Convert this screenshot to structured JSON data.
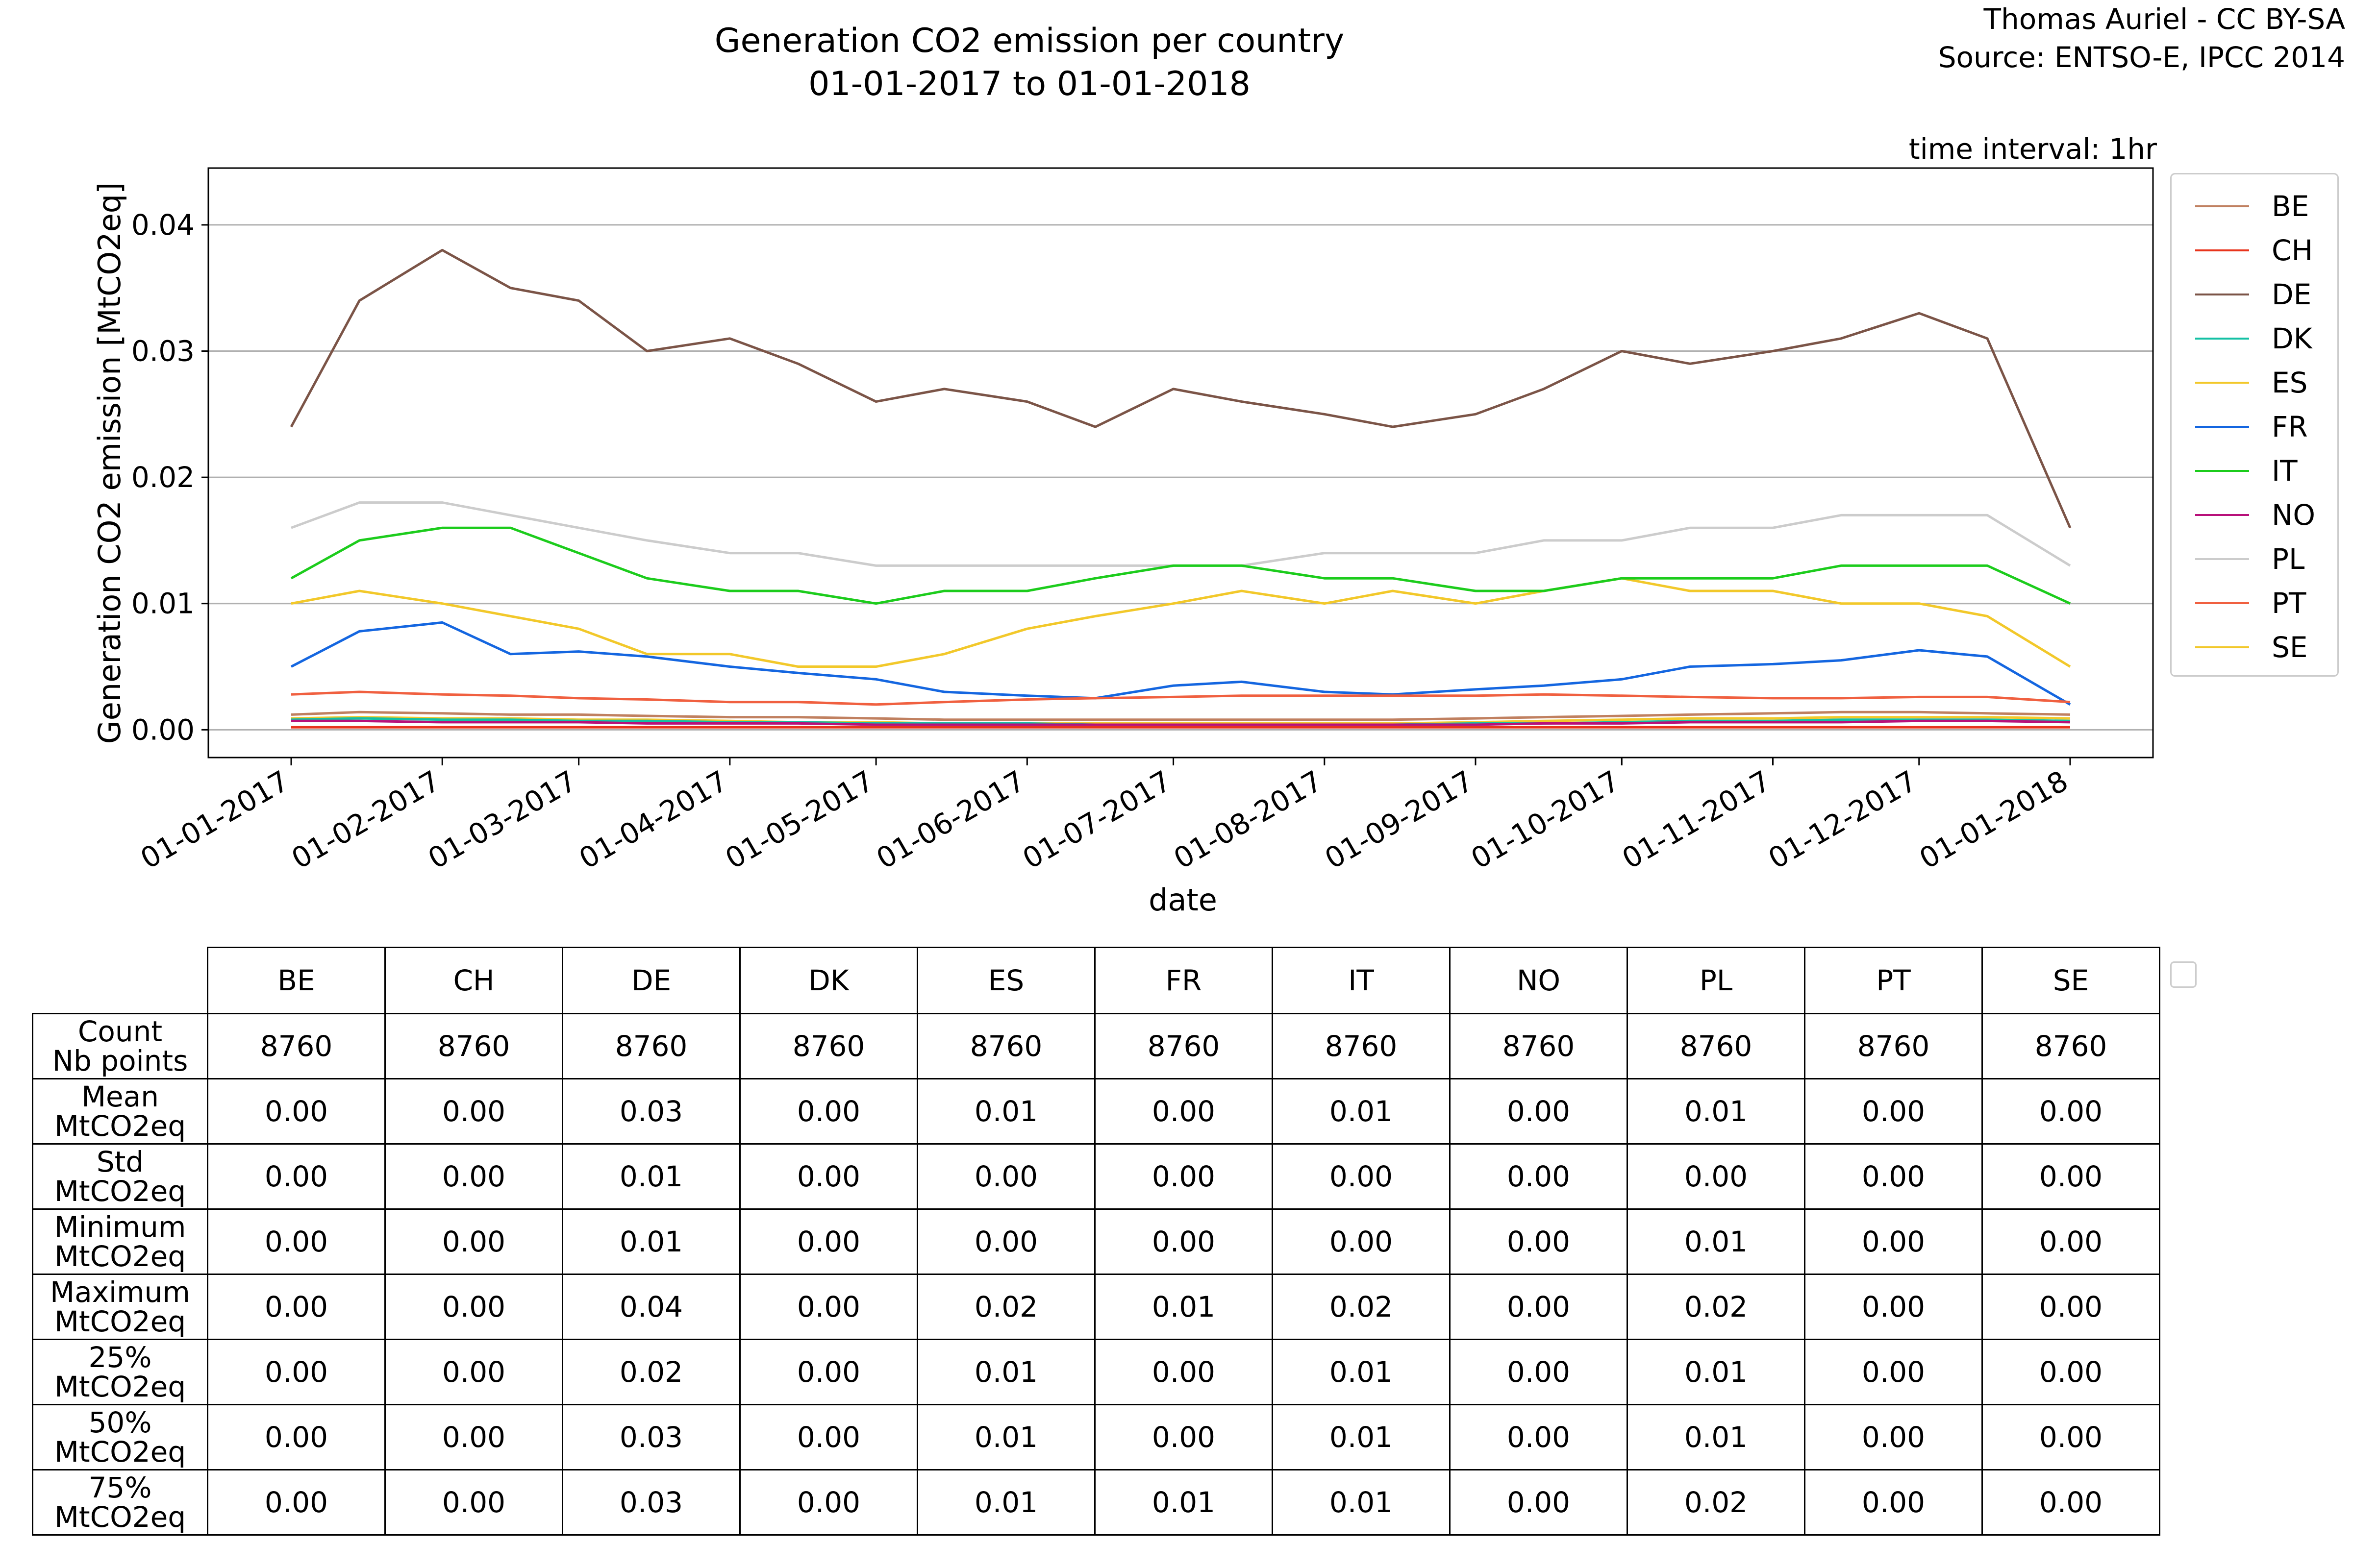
{
  "header": {
    "title_line1": "Generation CO2 emission per country",
    "title_line2": "01-01-2017 to 01-01-2018",
    "credit_line1": "Thomas Auriel - CC BY-SA",
    "credit_line2": "Source: ENTSO-E, IPCC 2014",
    "interval": "time interval: 1hr"
  },
  "chart_data": {
    "type": "line",
    "title": "Generation CO2 emission per country",
    "subtitle": "01-01-2017 to 01-01-2018",
    "xlabel": "date",
    "ylabel": "Generation CO2 emission [MtCO2eq]",
    "xlim": [
      "2016-12-15",
      "2018-01-18"
    ],
    "ylim": [
      -0.0022,
      0.0445
    ],
    "x_ticks": [
      "01-01-2017",
      "01-02-2017",
      "01-03-2017",
      "01-04-2017",
      "01-05-2017",
      "01-06-2017",
      "01-07-2017",
      "01-08-2017",
      "01-09-2017",
      "01-10-2017",
      "01-11-2017",
      "01-12-2017",
      "01-01-2018"
    ],
    "y_ticks": [
      "0.00",
      "0.01",
      "0.02",
      "0.03",
      "0.04"
    ],
    "y_tick_values": [
      0.0,
      0.01,
      0.02,
      0.03,
      0.04
    ],
    "grid": "horizontal",
    "legend_position": "right",
    "x": [
      "2017-01-01",
      "2017-01-15",
      "2017-02-01",
      "2017-02-15",
      "2017-03-01",
      "2017-03-15",
      "2017-04-01",
      "2017-04-15",
      "2017-05-01",
      "2017-05-15",
      "2017-06-01",
      "2017-06-15",
      "2017-07-01",
      "2017-07-15",
      "2017-08-01",
      "2017-08-15",
      "2017-09-01",
      "2017-09-15",
      "2017-10-01",
      "2017-10-15",
      "2017-11-01",
      "2017-11-15",
      "2017-12-01",
      "2017-12-15",
      "2018-01-01"
    ],
    "series": [
      {
        "name": "BE",
        "color": "#c08060",
        "values": [
          0.0012,
          0.0014,
          0.0013,
          0.0012,
          0.0012,
          0.0011,
          0.001,
          0.001,
          0.0009,
          0.0008,
          0.0008,
          0.0008,
          0.0008,
          0.0008,
          0.0008,
          0.0008,
          0.0009,
          0.001,
          0.0011,
          0.0012,
          0.0013,
          0.0014,
          0.0014,
          0.0013,
          0.0012
        ]
      },
      {
        "name": "CH",
        "color": "#e8341c",
        "values": [
          0.0002,
          0.0002,
          0.0002,
          0.0002,
          0.0002,
          0.0002,
          0.0002,
          0.0002,
          0.0002,
          0.0002,
          0.0002,
          0.0002,
          0.0002,
          0.0002,
          0.0002,
          0.0002,
          0.0002,
          0.0002,
          0.0002,
          0.0002,
          0.0002,
          0.0002,
          0.0002,
          0.0002,
          0.0002
        ]
      },
      {
        "name": "DE",
        "color": "#7b5447",
        "values": [
          0.024,
          0.034,
          0.038,
          0.035,
          0.034,
          0.03,
          0.031,
          0.029,
          0.026,
          0.027,
          0.026,
          0.024,
          0.027,
          0.026,
          0.025,
          0.024,
          0.025,
          0.027,
          0.03,
          0.029,
          0.03,
          0.031,
          0.033,
          0.031,
          0.016
        ]
      },
      {
        "name": "DK",
        "color": "#14c0a4",
        "values": [
          0.0008,
          0.0009,
          0.0008,
          0.0008,
          0.0007,
          0.0007,
          0.0006,
          0.0006,
          0.0005,
          0.0005,
          0.0005,
          0.0004,
          0.0004,
          0.0004,
          0.0004,
          0.0004,
          0.0005,
          0.0005,
          0.0006,
          0.0007,
          0.0007,
          0.0008,
          0.0008,
          0.0008,
          0.0007
        ]
      },
      {
        "name": "ES",
        "color": "#f2c82a",
        "values": [
          0.01,
          0.011,
          0.01,
          0.009,
          0.008,
          0.006,
          0.006,
          0.005,
          0.005,
          0.006,
          0.008,
          0.009,
          0.01,
          0.011,
          0.01,
          0.011,
          0.01,
          0.011,
          0.012,
          0.011,
          0.011,
          0.01,
          0.01,
          0.009,
          0.005
        ]
      },
      {
        "name": "FR",
        "color": "#1466e0",
        "values": [
          0.005,
          0.0078,
          0.0085,
          0.006,
          0.0062,
          0.0058,
          0.005,
          0.0045,
          0.004,
          0.003,
          0.0027,
          0.0025,
          0.0035,
          0.0038,
          0.003,
          0.0028,
          0.0032,
          0.0035,
          0.004,
          0.005,
          0.0052,
          0.0055,
          0.0063,
          0.0058,
          0.002
        ]
      },
      {
        "name": "IT",
        "color": "#1ccc1c",
        "values": [
          0.012,
          0.015,
          0.016,
          0.016,
          0.014,
          0.012,
          0.011,
          0.011,
          0.01,
          0.011,
          0.011,
          0.012,
          0.013,
          0.013,
          0.012,
          0.012,
          0.011,
          0.011,
          0.012,
          0.012,
          0.012,
          0.013,
          0.013,
          0.013,
          0.01
        ]
      },
      {
        "name": "NO",
        "color": "#b8107a",
        "values": [
          0.0007,
          0.0007,
          0.0006,
          0.0006,
          0.0006,
          0.0005,
          0.0005,
          0.0005,
          0.0004,
          0.0004,
          0.0004,
          0.0004,
          0.0004,
          0.0004,
          0.0004,
          0.0004,
          0.0004,
          0.0005,
          0.0005,
          0.0006,
          0.0006,
          0.0006,
          0.0007,
          0.0007,
          0.0006
        ]
      },
      {
        "name": "PL",
        "color": "#cccccc",
        "values": [
          0.016,
          0.018,
          0.018,
          0.017,
          0.016,
          0.015,
          0.014,
          0.014,
          0.013,
          0.013,
          0.013,
          0.013,
          0.013,
          0.013,
          0.014,
          0.014,
          0.014,
          0.015,
          0.015,
          0.016,
          0.016,
          0.017,
          0.017,
          0.017,
          0.013
        ]
      },
      {
        "name": "PT",
        "color": "#f06040",
        "values": [
          0.0028,
          0.003,
          0.0028,
          0.0027,
          0.0025,
          0.0024,
          0.0022,
          0.0022,
          0.002,
          0.0022,
          0.0024,
          0.0025,
          0.0026,
          0.0027,
          0.0027,
          0.0027,
          0.0027,
          0.0028,
          0.0027,
          0.0026,
          0.0025,
          0.0025,
          0.0026,
          0.0026,
          0.0022
        ]
      },
      {
        "name": "SE",
        "color": "#f2c82a",
        "values": [
          0.0009,
          0.001,
          0.0009,
          0.0009,
          0.0008,
          0.0008,
          0.0007,
          0.0006,
          0.0006,
          0.0005,
          0.0005,
          0.0005,
          0.0005,
          0.0005,
          0.0005,
          0.0005,
          0.0006,
          0.0007,
          0.0008,
          0.0009,
          0.0009,
          0.001,
          0.001,
          0.001,
          0.0009
        ]
      }
    ]
  },
  "table": {
    "columns": [
      "BE",
      "CH",
      "DE",
      "DK",
      "ES",
      "FR",
      "IT",
      "NO",
      "PL",
      "PT",
      "SE"
    ],
    "rows": [
      {
        "label1": "Count",
        "label2": "Nb points",
        "values": [
          "8760",
          "8760",
          "8760",
          "8760",
          "8760",
          "8760",
          "8760",
          "8760",
          "8760",
          "8760",
          "8760"
        ]
      },
      {
        "label1": "Mean",
        "label2": "MtCO2eq",
        "values": [
          "0.00",
          "0.00",
          "0.03",
          "0.00",
          "0.01",
          "0.00",
          "0.01",
          "0.00",
          "0.01",
          "0.00",
          "0.00"
        ]
      },
      {
        "label1": "Std",
        "label2": "MtCO2eq",
        "values": [
          "0.00",
          "0.00",
          "0.01",
          "0.00",
          "0.00",
          "0.00",
          "0.00",
          "0.00",
          "0.00",
          "0.00",
          "0.00"
        ]
      },
      {
        "label1": "Minimum",
        "label2": "MtCO2eq",
        "values": [
          "0.00",
          "0.00",
          "0.01",
          "0.00",
          "0.00",
          "0.00",
          "0.00",
          "0.00",
          "0.01",
          "0.00",
          "0.00"
        ]
      },
      {
        "label1": "Maximum",
        "label2": "MtCO2eq",
        "values": [
          "0.00",
          "0.00",
          "0.04",
          "0.00",
          "0.02",
          "0.01",
          "0.02",
          "0.00",
          "0.02",
          "0.00",
          "0.00"
        ]
      },
      {
        "label1": "25%",
        "label2": "MtCO2eq",
        "values": [
          "0.00",
          "0.00",
          "0.02",
          "0.00",
          "0.01",
          "0.00",
          "0.01",
          "0.00",
          "0.01",
          "0.00",
          "0.00"
        ]
      },
      {
        "label1": "50%",
        "label2": "MtCO2eq",
        "values": [
          "0.00",
          "0.00",
          "0.03",
          "0.00",
          "0.01",
          "0.00",
          "0.01",
          "0.00",
          "0.01",
          "0.00",
          "0.00"
        ]
      },
      {
        "label1": "75%",
        "label2": "MtCO2eq",
        "values": [
          "0.00",
          "0.00",
          "0.03",
          "0.00",
          "0.01",
          "0.01",
          "0.01",
          "0.00",
          "0.02",
          "0.00",
          "0.00"
        ]
      }
    ]
  }
}
